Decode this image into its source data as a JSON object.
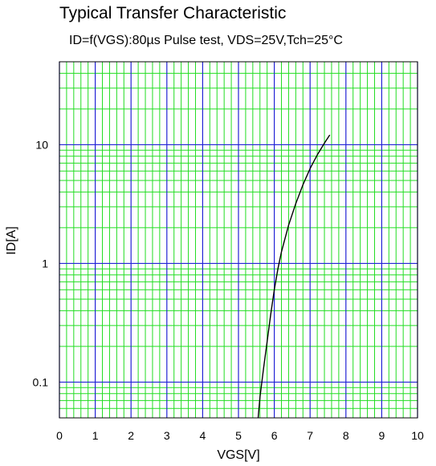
{
  "chart_data": {
    "type": "line",
    "title": "Typical Transfer Characteristic",
    "subtitle": "ID=f(VGS):80µs Pulse test, VDS=25V,Tch=25°C",
    "xlabel": "VGS[V]",
    "ylabel": "ID[A]",
    "xlim": [
      0,
      10
    ],
    "ylim": [
      0.05,
      50
    ],
    "yscale": "log",
    "x_ticks": [
      "0",
      "1",
      "2",
      "3",
      "4",
      "5",
      "6",
      "7",
      "8",
      "9",
      "10"
    ],
    "y_ticks": [
      "0.1",
      "1",
      "10"
    ],
    "grid": true,
    "series": [
      {
        "x": [
          5.55,
          5.6,
          5.7,
          5.8,
          5.9,
          6.0,
          6.1,
          6.2,
          6.4,
          6.6,
          6.8,
          7.0,
          7.2,
          7.4,
          7.55
        ],
        "y": [
          0.05,
          0.075,
          0.13,
          0.22,
          0.37,
          0.6,
          0.9,
          1.25,
          2.1,
          3.2,
          4.6,
          6.3,
          8.2,
          10.3,
          12.1
        ]
      }
    ],
    "colors": {
      "major_grid": "#2323d6",
      "minor_grid": "#22dd22",
      "curve": "#000000"
    }
  }
}
